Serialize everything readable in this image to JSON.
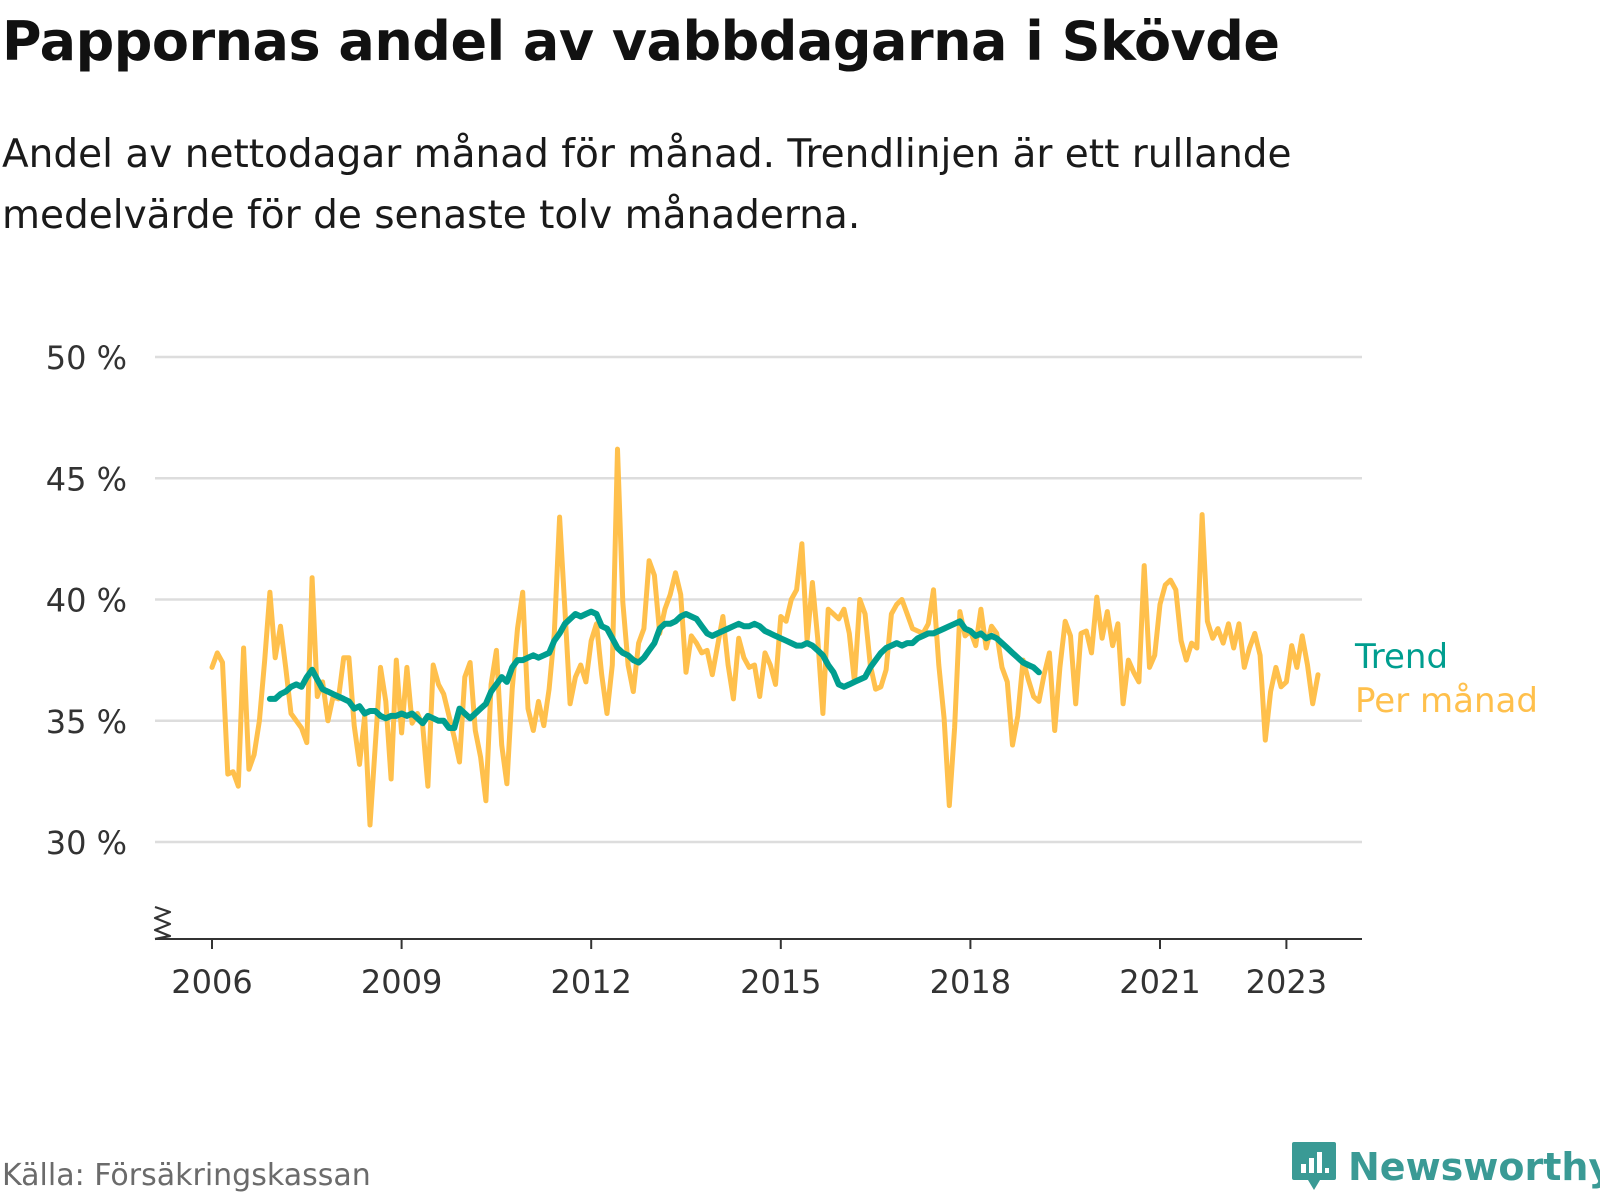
{
  "header": {
    "title": "Pappornas andel av vabbdagarna i Skövde",
    "subtitle": "Andel av nettodagar månad för månad. Trendlinjen är ett rullande medelvärde för de senaste tolv månaderna."
  },
  "footer": {
    "source": "Källa: Försäkringskassan",
    "brand": "Newsworthy",
    "brand_icon": "bar-chart-speech-bubble-icon"
  },
  "colors": {
    "monthly": "#FFC04C",
    "trend": "#009E8F",
    "grid": "#DDDDDD",
    "axis": "#333333",
    "brand": "#3A9A95"
  },
  "chart_data": {
    "type": "line",
    "title": "Pappornas andel av vabbdagarna i Skövde",
    "xlabel": "",
    "ylabel": "",
    "ylim": [
      26,
      50
    ],
    "y_ticks": [
      30,
      35,
      40,
      45,
      50
    ],
    "y_tick_suffix": " %",
    "y_axis_break": true,
    "grid": true,
    "x_ticks": [
      "2006",
      "2009",
      "2012",
      "2015",
      "2018",
      "2021",
      "2023"
    ],
    "legend": "direct labels at line ends (right)",
    "series": [
      {
        "name": "Per månad",
        "color": "#FFC04C",
        "x_start": "2006-01",
        "frequency": "monthly",
        "values": [
          37.2,
          37.8,
          37.4,
          32.8,
          32.9,
          32.3,
          38.0,
          33.0,
          33.6,
          35.0,
          37.5,
          40.3,
          37.6,
          38.9,
          37.2,
          35.3,
          35.0,
          34.7,
          34.1,
          40.9,
          36.0,
          36.6,
          35.0,
          36.0,
          35.9,
          37.6,
          37.6,
          34.8,
          33.2,
          35.2,
          30.7,
          34.0,
          37.2,
          35.8,
          32.6,
          37.5,
          34.5,
          37.2,
          34.9,
          35.3,
          34.8,
          32.3,
          37.3,
          36.5,
          36.1,
          35.2,
          34.3,
          33.3,
          36.8,
          37.4,
          34.6,
          33.5,
          31.7,
          36.5,
          37.9,
          34.0,
          32.4,
          36.3,
          38.8,
          40.3,
          35.5,
          34.6,
          35.8,
          34.8,
          36.3,
          38.6,
          43.4,
          39.6,
          35.7,
          36.8,
          37.3,
          36.6,
          38.3,
          39.0,
          36.9,
          35.3,
          37.3,
          46.2,
          39.9,
          37.3,
          36.2,
          38.2,
          38.8,
          41.6,
          41.0,
          38.6,
          39.6,
          40.2,
          41.1,
          40.2,
          37.0,
          38.5,
          38.2,
          37.8,
          37.9,
          36.9,
          38.1,
          39.3,
          37.3,
          35.9,
          38.4,
          37.6,
          37.2,
          37.3,
          36.0,
          37.8,
          37.3,
          36.5,
          39.3,
          39.1,
          40.0,
          40.4,
          42.3,
          38.3,
          40.7,
          38.4,
          35.3,
          39.6,
          39.4,
          39.2,
          39.6,
          38.6,
          36.6,
          40.0,
          39.4,
          37.3,
          36.3,
          36.4,
          37.1,
          39.4,
          39.8,
          40.0,
          39.4,
          38.8,
          38.7,
          38.6,
          39.0,
          40.4,
          37.3,
          35.1,
          31.5,
          34.7,
          39.5,
          38.5,
          38.7,
          38.1,
          39.6,
          38.0,
          38.9,
          38.6,
          37.2,
          36.6,
          34.0,
          35.2,
          37.5,
          36.7,
          36.0,
          35.8,
          36.9,
          37.8,
          34.6,
          37.2,
          39.1,
          38.5,
          35.7,
          38.6,
          38.7,
          37.8,
          40.1,
          38.4,
          39.5,
          38.1,
          39.0,
          35.7,
          37.5,
          37.0,
          36.6,
          41.4,
          37.2,
          37.7,
          39.8,
          40.6,
          40.8,
          40.4,
          38.3,
          37.5,
          38.2,
          38.0,
          43.5,
          39.1,
          38.4,
          38.8,
          38.2,
          39.0,
          38.0,
          39.0,
          37.2,
          38.0,
          38.6,
          37.7,
          34.2,
          36.2,
          37.2,
          36.4,
          36.6,
          38.1,
          37.2,
          38.5,
          37.3,
          35.7,
          36.9
        ]
      },
      {
        "name": "Trend",
        "color": "#009E8F",
        "x_start": "2006-12",
        "frequency": "monthly",
        "values": [
          35.9,
          35.9,
          36.1,
          36.2,
          36.4,
          36.5,
          36.4,
          36.8,
          37.1,
          36.7,
          36.3,
          36.2,
          36.1,
          36.0,
          35.9,
          35.8,
          35.5,
          35.6,
          35.3,
          35.4,
          35.4,
          35.2,
          35.1,
          35.2,
          35.2,
          35.3,
          35.2,
          35.3,
          35.1,
          34.9,
          35.2,
          35.1,
          35.0,
          35.0,
          34.7,
          34.7,
          35.5,
          35.3,
          35.1,
          35.3,
          35.5,
          35.7,
          36.2,
          36.5,
          36.8,
          36.6,
          37.2,
          37.5,
          37.5,
          37.6,
          37.7,
          37.6,
          37.7,
          37.8,
          38.3,
          38.6,
          39.0,
          39.2,
          39.4,
          39.3,
          39.4,
          39.5,
          39.4,
          38.9,
          38.8,
          38.4,
          38.0,
          37.8,
          37.7,
          37.5,
          37.4,
          37.6,
          37.9,
          38.2,
          38.8,
          39.0,
          39.0,
          39.1,
          39.3,
          39.4,
          39.3,
          39.2,
          38.9,
          38.6,
          38.5,
          38.6,
          38.7,
          38.8,
          38.9,
          39.0,
          38.9,
          38.9,
          39.0,
          38.9,
          38.7,
          38.6,
          38.5,
          38.4,
          38.3,
          38.2,
          38.1,
          38.1,
          38.2,
          38.1,
          37.9,
          37.7,
          37.3,
          37.0,
          36.5,
          36.4,
          36.5,
          36.6,
          36.7,
          36.8,
          37.2,
          37.5,
          37.8,
          38.0,
          38.1,
          38.2,
          38.1,
          38.2,
          38.2,
          38.4,
          38.5,
          38.6,
          38.6,
          38.7,
          38.8,
          38.9,
          39.0,
          39.1,
          38.8,
          38.7,
          38.5,
          38.6,
          38.4,
          38.5,
          38.4,
          38.2,
          38.0,
          37.8,
          37.6,
          37.4,
          37.3,
          37.2,
          37.0
        ]
      }
    ]
  }
}
